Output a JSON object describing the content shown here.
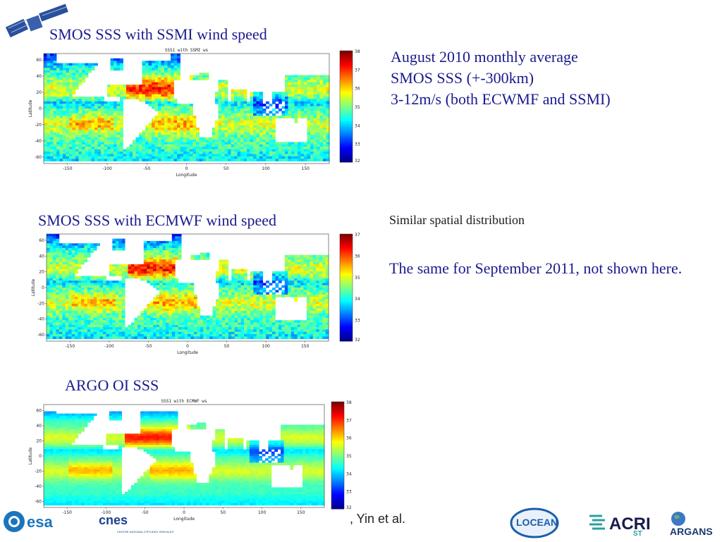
{
  "slide": {
    "title1": "SMOS SSS with SSMI wind speed",
    "title2": "SMOS SSS with ECMWF wind speed",
    "title3": "ARGO OI SSS",
    "desc_lines": [
      "August 2010 monthly average",
      "SMOS SSS (+-300km)",
      "3-12m/s (both ECWMF and SSMI)"
    ],
    "similar": "Similar spatial distribution",
    "same": "The same for September 2011, not shown here.",
    "credit": ", Yin et al."
  },
  "maps": [
    {
      "id": "ssmi",
      "small_title": "SSS1 with SSMI ws",
      "xlabel": "Longitude",
      "ylabel": "Latitude",
      "xticks": [
        "-150",
        "-100",
        "-50",
        "0",
        "50",
        "100",
        "150"
      ],
      "yticks": [
        "60",
        "40",
        "20",
        "0",
        "-20",
        "-40",
        "-60"
      ],
      "cbar_ticks": [
        "38",
        "37",
        "36",
        "35",
        "34",
        "33",
        "32"
      ]
    },
    {
      "id": "ecmwf",
      "small_title": "",
      "xlabel": "Longitude",
      "ylabel": "Latitude",
      "xticks": [
        "-150",
        "-100",
        "-50",
        "0",
        "50",
        "100",
        "150"
      ],
      "yticks": [
        "60",
        "40",
        "20",
        "0",
        "-20",
        "-40",
        "-60"
      ],
      "cbar_ticks": [
        "37",
        "36",
        "35",
        "34",
        "33",
        "32"
      ]
    },
    {
      "id": "argo",
      "small_title": "SSS1 with ECMWF ws",
      "xlabel": "Longitude",
      "ylabel": "Latitude",
      "xticks": [
        "-150",
        "-100",
        "-50",
        "0",
        "50",
        "100",
        "150"
      ],
      "yticks": [
        "60",
        "40",
        "20",
        "0",
        "-20",
        "-40",
        "-60"
      ],
      "cbar_ticks": [
        "38",
        "37",
        "36",
        "35",
        "34",
        "33",
        "32"
      ]
    }
  ],
  "logos": {
    "esa": "esa",
    "cnes": "cnes",
    "cnes_sub": "CENTRE NATIONAL D'ÉTUDES SPATIALES",
    "locean": "LOCEAN",
    "acri": "ACRI",
    "acri_sub": "ST",
    "argans": "ARGANS"
  },
  "colors": {
    "title_red": "#c00000",
    "title_blue": "#1a1a8f",
    "colormap": [
      "#00008f",
      "#0000ff",
      "#0080ff",
      "#00ffff",
      "#80ff80",
      "#ffff00",
      "#ff8000",
      "#ff0000",
      "#800000"
    ]
  }
}
